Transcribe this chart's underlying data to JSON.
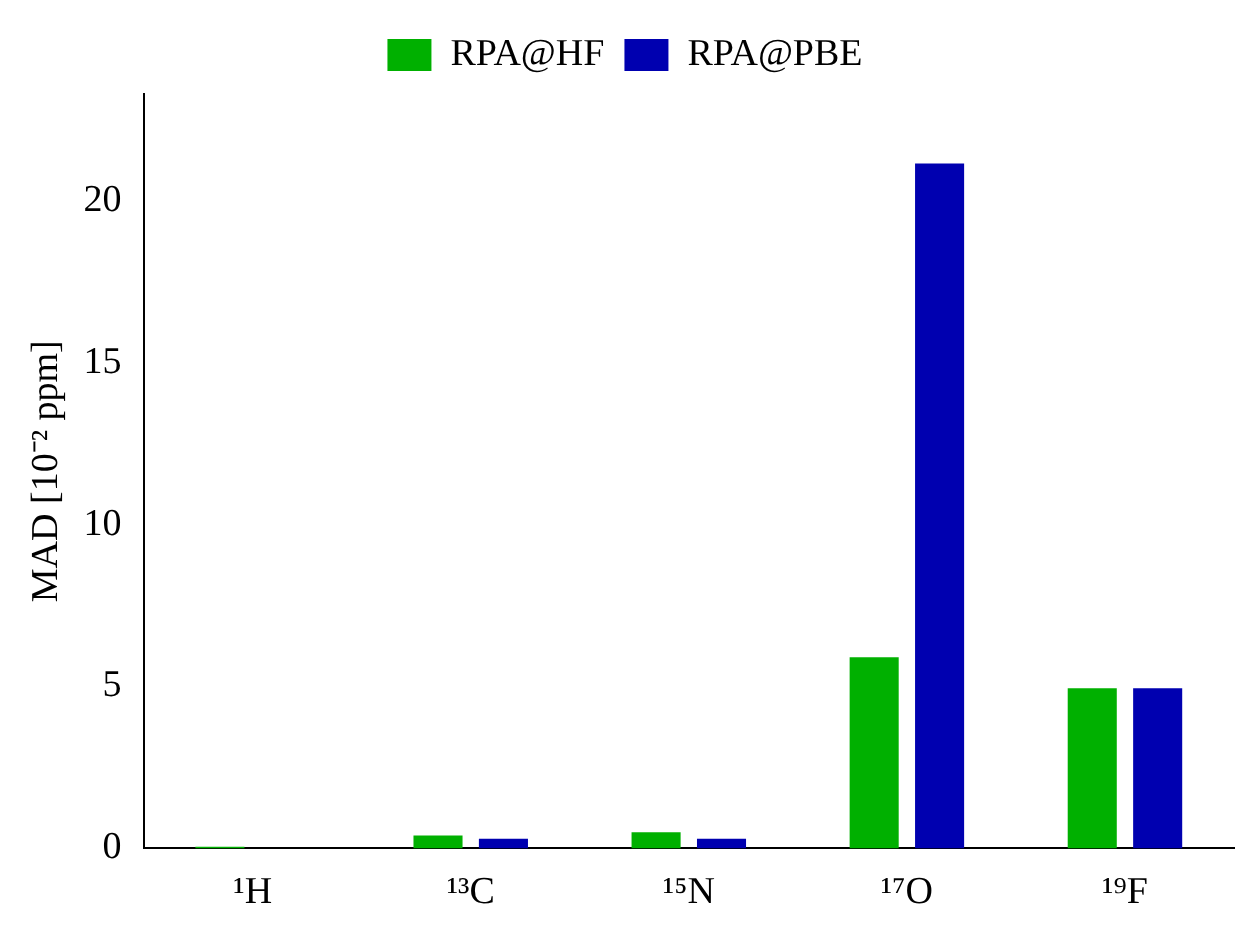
{
  "chart_data": {
    "type": "bar",
    "categories": [
      "¹H",
      "¹³C",
      "¹⁵N",
      "¹⁷O",
      "¹⁹F"
    ],
    "series": [
      {
        "name": "RPA@HF",
        "color": "#00b000",
        "values": [
          0.05,
          0.4,
          0.5,
          5.9,
          4.95
        ]
      },
      {
        "name": "RPA@PBE",
        "color": "#0000b0",
        "values": [
          null,
          0.3,
          0.3,
          21.15,
          4.95
        ]
      }
    ],
    "ylabel": "MAD [10⁻² ppm]",
    "ylim": [
      0,
      23.3
    ],
    "yticks": [
      0,
      5,
      10,
      15,
      20
    ],
    "grid": false,
    "legend": "top"
  }
}
